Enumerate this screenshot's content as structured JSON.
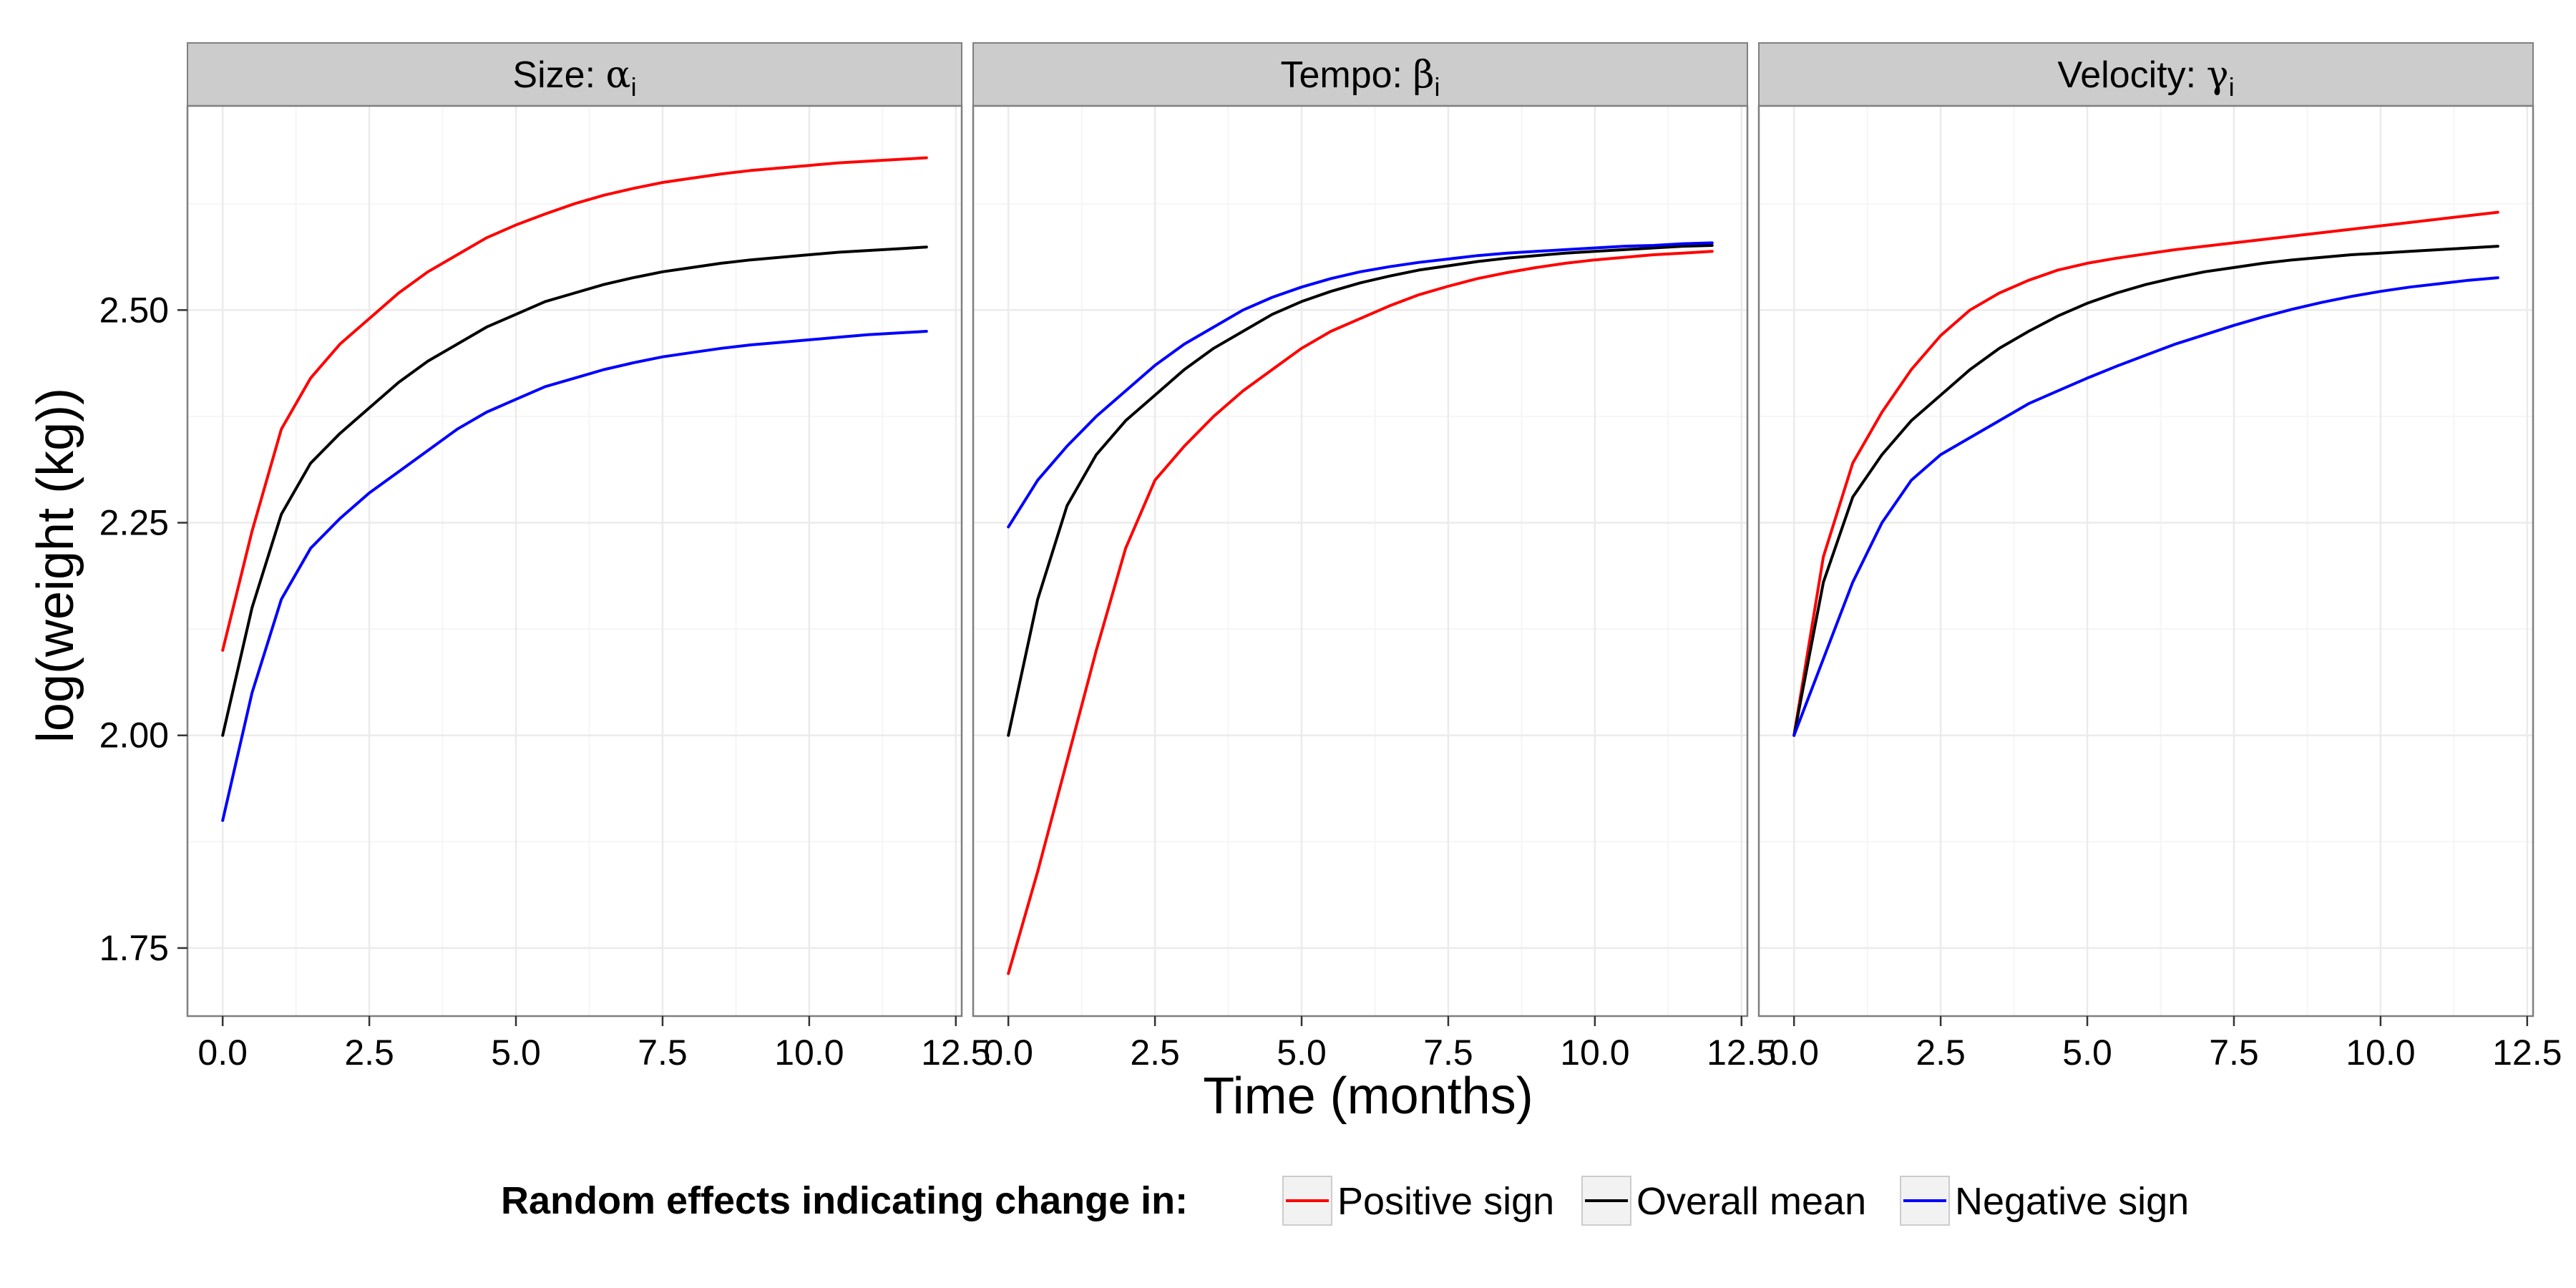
{
  "chart_data": {
    "type": "line",
    "layout": "facets",
    "xlabel": "Time (months)",
    "ylabel": "log(weight (kg))",
    "xlim": [
      -0.6,
      12.6
    ],
    "ylim": [
      1.67,
      2.74
    ],
    "x_ticks": [
      0,
      2.5,
      5,
      7.5,
      10,
      12.5
    ],
    "x_tick_labels": [
      "0.0",
      "2.5",
      "5.0",
      "7.5",
      "10.0",
      "12.5"
    ],
    "y_ticks": [
      1.75,
      2.0,
      2.25,
      2.5
    ],
    "y_tick_labels": [
      "1.75",
      "2.00",
      "2.25",
      "2.50"
    ],
    "grid": true,
    "legend_position": "bottom",
    "legend": {
      "title": "Random effects indicating change in:",
      "entries": [
        {
          "key": "positive",
          "label": "Positive sign",
          "color": "#ff0000"
        },
        {
          "key": "mean",
          "label": "Overall mean",
          "color": "#000000"
        },
        {
          "key": "negative",
          "label": "Negative sign",
          "color": "#0000ff"
        }
      ]
    },
    "x": [
      0,
      0.5,
      1,
      1.5,
      2,
      2.5,
      3,
      3.5,
      4,
      4.5,
      5,
      5.5,
      6,
      6.5,
      7,
      7.5,
      8,
      8.5,
      9,
      9.5,
      10,
      10.5,
      11,
      11.5,
      12
    ],
    "panels": [
      {
        "title_text": "Size: ",
        "title_symbol": "α",
        "title_sub": "i",
        "series": [
          {
            "key": "positive",
            "values": [
              2.1,
              2.24,
              2.36,
              2.42,
              2.46,
              2.49,
              2.52,
              2.545,
              2.565,
              2.585,
              2.6,
              2.613,
              2.625,
              2.635,
              2.643,
              2.65,
              2.655,
              2.66,
              2.664,
              2.667,
              2.67,
              2.673,
              2.675,
              2.677,
              2.679
            ]
          },
          {
            "key": "mean",
            "values": [
              2.0,
              2.15,
              2.26,
              2.32,
              2.355,
              2.385,
              2.415,
              2.44,
              2.46,
              2.48,
              2.495,
              2.51,
              2.52,
              2.53,
              2.538,
              2.545,
              2.55,
              2.555,
              2.559,
              2.562,
              2.565,
              2.568,
              2.57,
              2.572,
              2.574
            ]
          },
          {
            "key": "negative",
            "values": [
              1.9,
              2.05,
              2.16,
              2.22,
              2.255,
              2.285,
              2.31,
              2.335,
              2.36,
              2.38,
              2.395,
              2.41,
              2.42,
              2.43,
              2.438,
              2.445,
              2.45,
              2.455,
              2.459,
              2.462,
              2.465,
              2.468,
              2.471,
              2.473,
              2.475
            ]
          }
        ]
      },
      {
        "title_text": "Tempo: ",
        "title_symbol": "β",
        "title_sub": "i",
        "series": [
          {
            "key": "positive",
            "values": [
              1.72,
              1.84,
              1.97,
              2.1,
              2.22,
              2.3,
              2.34,
              2.375,
              2.405,
              2.43,
              2.455,
              2.475,
              2.49,
              2.505,
              2.518,
              2.528,
              2.537,
              2.544,
              2.55,
              2.555,
              2.559,
              2.562,
              2.565,
              2.567,
              2.569
            ]
          },
          {
            "key": "mean",
            "values": [
              2.0,
              2.16,
              2.27,
              2.33,
              2.37,
              2.4,
              2.43,
              2.455,
              2.475,
              2.495,
              2.51,
              2.522,
              2.532,
              2.54,
              2.547,
              2.552,
              2.557,
              2.561,
              2.564,
              2.567,
              2.569,
              2.571,
              2.573,
              2.575,
              2.576
            ]
          },
          {
            "key": "negative",
            "values": [
              2.245,
              2.3,
              2.34,
              2.375,
              2.405,
              2.435,
              2.46,
              2.48,
              2.5,
              2.515,
              2.527,
              2.537,
              2.545,
              2.551,
              2.556,
              2.56,
              2.564,
              2.567,
              2.569,
              2.571,
              2.573,
              2.575,
              2.576,
              2.578,
              2.579
            ]
          }
        ]
      },
      {
        "title_text": "Velocity: ",
        "title_symbol": "γ",
        "title_sub": "i",
        "series": [
          {
            "key": "positive",
            "values": [
              2.0,
              2.21,
              2.32,
              2.38,
              2.43,
              2.47,
              2.5,
              2.52,
              2.535,
              2.547,
              2.555,
              2.561,
              2.566,
              2.571,
              2.575,
              2.579,
              2.583,
              2.587,
              2.591,
              2.595,
              2.599,
              2.603,
              2.607,
              2.611,
              2.615
            ]
          },
          {
            "key": "mean",
            "values": [
              2.0,
              2.18,
              2.28,
              2.33,
              2.37,
              2.4,
              2.43,
              2.455,
              2.475,
              2.493,
              2.508,
              2.52,
              2.53,
              2.538,
              2.545,
              2.55,
              2.555,
              2.559,
              2.562,
              2.565,
              2.567,
              2.569,
              2.571,
              2.573,
              2.575
            ]
          },
          {
            "key": "negative",
            "values": [
              2.0,
              2.09,
              2.18,
              2.25,
              2.3,
              2.33,
              2.35,
              2.37,
              2.39,
              2.405,
              2.42,
              2.434,
              2.447,
              2.46,
              2.471,
              2.482,
              2.492,
              2.501,
              2.509,
              2.516,
              2.522,
              2.527,
              2.531,
              2.535,
              2.538
            ]
          }
        ]
      }
    ]
  }
}
